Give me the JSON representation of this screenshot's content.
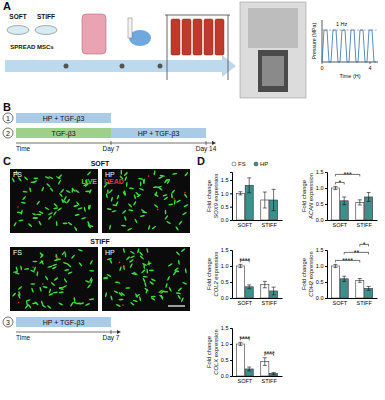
{
  "chart_data": [
    {
      "type": "bar",
      "ylabel": [
        "Fold change",
        "SOX9 expression"
      ],
      "categories": [
        "SOFT",
        "STIFF"
      ],
      "series": [
        {
          "name": "FS",
          "color": "#ffffff",
          "values": [
            1.0,
            0.75
          ],
          "errors": [
            0.06,
            0.3
          ]
        },
        {
          "name": "HP",
          "color": "#3e8e8b",
          "values": [
            1.3,
            0.75
          ],
          "errors": [
            0.28,
            0.4
          ]
        }
      ],
      "ylim": [
        0,
        1.8
      ],
      "yticks": [
        {
          "value": 0,
          "label": "0.0"
        },
        0.5,
        {
          "value": 1,
          "label": "1.0"
        },
        1.5
      ],
      "legend": "top"
    },
    {
      "type": "bar",
      "ylabel": [
        "Fold change",
        "ACAN expression"
      ],
      "categories": [
        "SOFT",
        "STIFF"
      ],
      "series": [
        {
          "name": "FS",
          "color": "#ffffff",
          "values": [
            1.0,
            0.55
          ],
          "errors": [
            0.05,
            0.08
          ]
        },
        {
          "name": "HP",
          "color": "#3e8e8b",
          "values": [
            0.6,
            0.72
          ],
          "errors": [
            0.12,
            0.14
          ]
        }
      ],
      "ylim": [
        0,
        1.5
      ],
      "yticks": [
        {
          "value": 0,
          "label": "0.0"
        },
        0.5,
        {
          "value": 1,
          "label": "1.0"
        },
        1.5
      ],
      "annotations": [
        {
          "text": "*",
          "from": {
            "category": "SOFT",
            "series": "FS"
          },
          "to": {
            "category": "SOFT",
            "series": "HP"
          }
        },
        {
          "text": "***",
          "from": {
            "category": "SOFT",
            "series": "FS"
          },
          "to": {
            "category": "STIFF",
            "series": "FS"
          }
        }
      ]
    },
    {
      "type": "bar",
      "ylabel": [
        "Fold change",
        "COL2 expression"
      ],
      "categories": [
        "SOFT",
        "STIFF"
      ],
      "series": [
        {
          "name": "FS",
          "color": "#ffffff",
          "values": [
            1.0,
            0.42
          ],
          "errors": [
            0.05,
            0.1
          ]
        },
        {
          "name": "HP",
          "color": "#3e8e8b",
          "values": [
            0.35,
            0.22
          ],
          "errors": [
            0.06,
            0.12
          ]
        }
      ],
      "ylim": [
        0,
        1.5
      ],
      "yticks": [
        {
          "value": 0,
          "label": "0.0"
        },
        0.5,
        {
          "value": 1,
          "label": "1.0"
        },
        1.5
      ],
      "annotations": [
        {
          "text": "****",
          "from": {
            "category": "SOFT",
            "series": "FS"
          },
          "to": {
            "category": "SOFT",
            "series": "HP"
          }
        }
      ]
    },
    {
      "type": "bar",
      "ylabel": [
        "Fold change",
        "CDH2 expression"
      ],
      "categories": [
        "SOFT",
        "STIFF"
      ],
      "series": [
        {
          "name": "FS",
          "color": "#ffffff",
          "values": [
            1.0,
            0.55
          ],
          "errors": [
            0.05,
            0.06
          ]
        },
        {
          "name": "HP",
          "color": "#3e8e8b",
          "values": [
            0.6,
            0.3
          ],
          "errors": [
            0.08,
            0.06
          ]
        }
      ],
      "ylim": [
        0,
        1.5
      ],
      "yticks": [
        {
          "value": 0,
          "label": "0.0"
        },
        0.5,
        {
          "value": 1,
          "label": "1.0"
        },
        1.5
      ],
      "annotations": [
        {
          "text": "****",
          "from": {
            "category": "SOFT",
            "series": "FS"
          },
          "to": {
            "category": "STIFF",
            "series": "FS"
          }
        },
        {
          "text": "**",
          "from": {
            "category": "SOFT",
            "series": "HP"
          },
          "to": {
            "category": "STIFF",
            "series": "HP"
          }
        },
        {
          "text": "*",
          "from": {
            "category": "STIFF",
            "series": "FS"
          },
          "to": {
            "category": "STIFF",
            "series": "HP"
          }
        }
      ]
    },
    {
      "type": "bar",
      "ylabel": [
        "Fold change",
        "COLX expression"
      ],
      "categories": [
        "SOFT",
        "STIFF"
      ],
      "series": [
        {
          "name": "FS",
          "color": "#ffffff",
          "values": [
            1.0,
            0.45
          ],
          "errors": [
            0.05,
            0.12
          ]
        },
        {
          "name": "HP",
          "color": "#3e8e8b",
          "values": [
            0.22,
            0.08
          ],
          "errors": [
            0.06,
            0.03
          ]
        }
      ],
      "ylim": [
        0,
        1.5
      ],
      "yticks": [
        {
          "value": 0,
          "label": "0.0"
        },
        0.5,
        {
          "value": 1,
          "label": "1.0"
        },
        1.5
      ],
      "annotations": [
        {
          "text": "****",
          "from": {
            "category": "SOFT",
            "series": "FS"
          },
          "to": {
            "category": "SOFT",
            "series": "HP"
          }
        },
        {
          "text": "****",
          "from": {
            "category": "STIFF",
            "series": "FS"
          },
          "to": {
            "category": "STIFF",
            "series": "HP"
          }
        }
      ]
    }
  ],
  "figure": {
    "panel_labels": [
      "A",
      "B",
      "C",
      "D"
    ],
    "panel_a": {
      "substrates": [
        "SOFT",
        "STIFF"
      ],
      "cells": "SPREAD MSCs",
      "pressure_axis": "Pressure (MPa)",
      "time_axis": "Time (H)",
      "time_ticks": [
        0,
        4
      ],
      "frequency": "1 Hz"
    },
    "panel_b": {
      "protocols": [
        {
          "id": "1",
          "segments": [
            {
              "label": "HP + TGF-β3",
              "color": "#a9cbe8"
            }
          ]
        },
        {
          "id": "2",
          "segments": [
            {
              "label": "TGF-β3",
              "color": "#9fd08a"
            },
            {
              "label": "HP + TGF-β3",
              "color": "#a9cbe8"
            }
          ]
        }
      ],
      "time_label": "Time",
      "days": [
        "Day 7",
        "Day 14"
      ]
    },
    "panel_c": {
      "conditions": [
        "SOFT",
        "STIFF"
      ],
      "groups": [
        "FS",
        "HP"
      ],
      "stain": [
        "LIVE",
        "DEAD"
      ],
      "stain_colors": [
        "#3ddc3d",
        "#e03030"
      ],
      "protocol": {
        "id": "3",
        "segments": [
          {
            "label": "HP + TGF-β3",
            "color": "#a9cbe8"
          }
        ]
      },
      "time_label": "Time",
      "days": [
        "Day 7"
      ]
    }
  }
}
